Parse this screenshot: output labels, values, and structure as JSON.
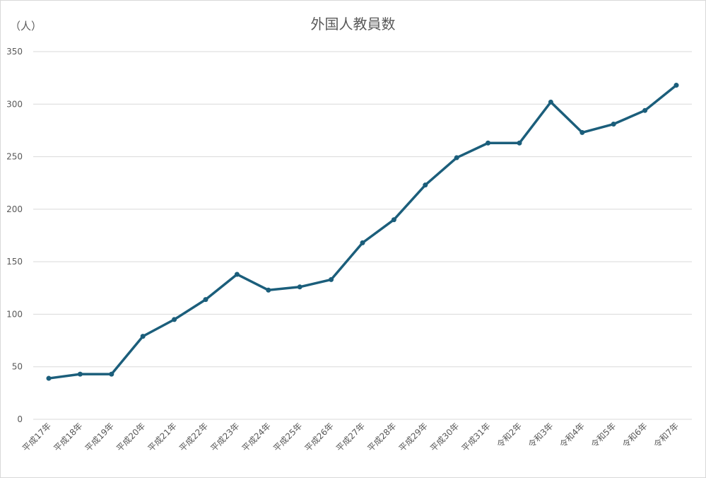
{
  "chart_data": {
    "type": "line",
    "title": "外国人教員数",
    "ylabel": "（人）",
    "xlabel": "",
    "categories": [
      "平成17年",
      "平成18年",
      "平成19年",
      "平成20年",
      "平成21年",
      "平成22年",
      "平成23年",
      "平成24年",
      "平成25年",
      "平成26年",
      "平成27年",
      "平成28年",
      "平成29年",
      "平成30年",
      "平成31年",
      "令和2年",
      "令和3年",
      "令和4年",
      "令和5年",
      "令和6年",
      "令和7年"
    ],
    "values": [
      39,
      43,
      43,
      79,
      95,
      114,
      138,
      123,
      126,
      133,
      168,
      190,
      223,
      249,
      263,
      263,
      302,
      273,
      281,
      294,
      318
    ],
    "ylim": [
      0,
      350
    ],
    "yticks": [
      0,
      50,
      100,
      150,
      200,
      250,
      300,
      350
    ],
    "grid": true,
    "legend": "none",
    "line_color": "#1b5e7b"
  }
}
